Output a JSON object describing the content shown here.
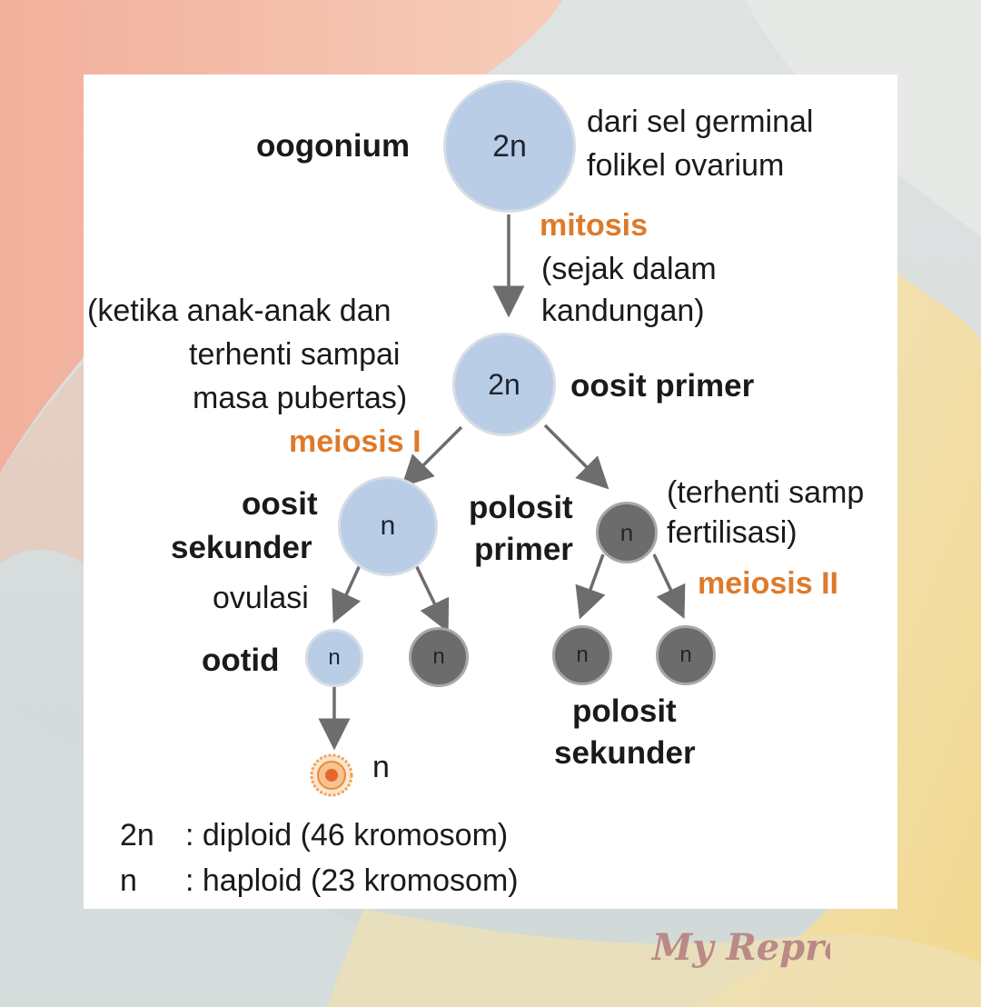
{
  "diagram": {
    "nodes": {
      "oogonium": {
        "label": "oogonium",
        "ploidy": "2n",
        "note_line1": "dari sel germinal",
        "note_line2": "folikel ovarium"
      },
      "mitosis": {
        "label": "mitosis",
        "note_line1": "(sejak dalam",
        "note_line2": "kandungan)"
      },
      "oosit_primer": {
        "label": "oosit primer",
        "ploidy": "2n",
        "note_line1": "(ketika anak-anak dan",
        "note_line2": "terhenti sampai",
        "note_line3": "masa pubertas)"
      },
      "meiosis_1": {
        "label": "meiosis I"
      },
      "oosit_sekunder": {
        "label_line1": "oosit",
        "label_line2": "sekunder",
        "ploidy": "n"
      },
      "polosit_primer": {
        "label_line1": "polosit",
        "label_line2": "primer",
        "ploidy": "n",
        "note_line1": "(terhenti samp",
        "note_line2": "fertilisasi)"
      },
      "meiosis_2": {
        "label": "meiosis II"
      },
      "ovulasi": {
        "label": "ovulasi"
      },
      "ootid": {
        "label": "ootid",
        "ploidy": "n"
      },
      "polar_a": {
        "ploidy": "n"
      },
      "polosit_sekunder": {
        "label_line1": "polosit",
        "label_line2": "sekunder",
        "ploidy_left": "n",
        "ploidy_right": "n"
      },
      "ovum": {
        "ploidy": "n"
      }
    },
    "legend": [
      {
        "symbol": "2n",
        "text": ": diploid (46 kromosom)"
      },
      {
        "symbol": "n",
        "text": ": haploid (23 kromosom)"
      }
    ]
  },
  "watermark": "My Repro",
  "colors": {
    "accent": "#de7a2a",
    "diploid_cell": "#b9cde6",
    "polar_cell": "#6c6c6c",
    "arrow": "#6d6d6d"
  }
}
